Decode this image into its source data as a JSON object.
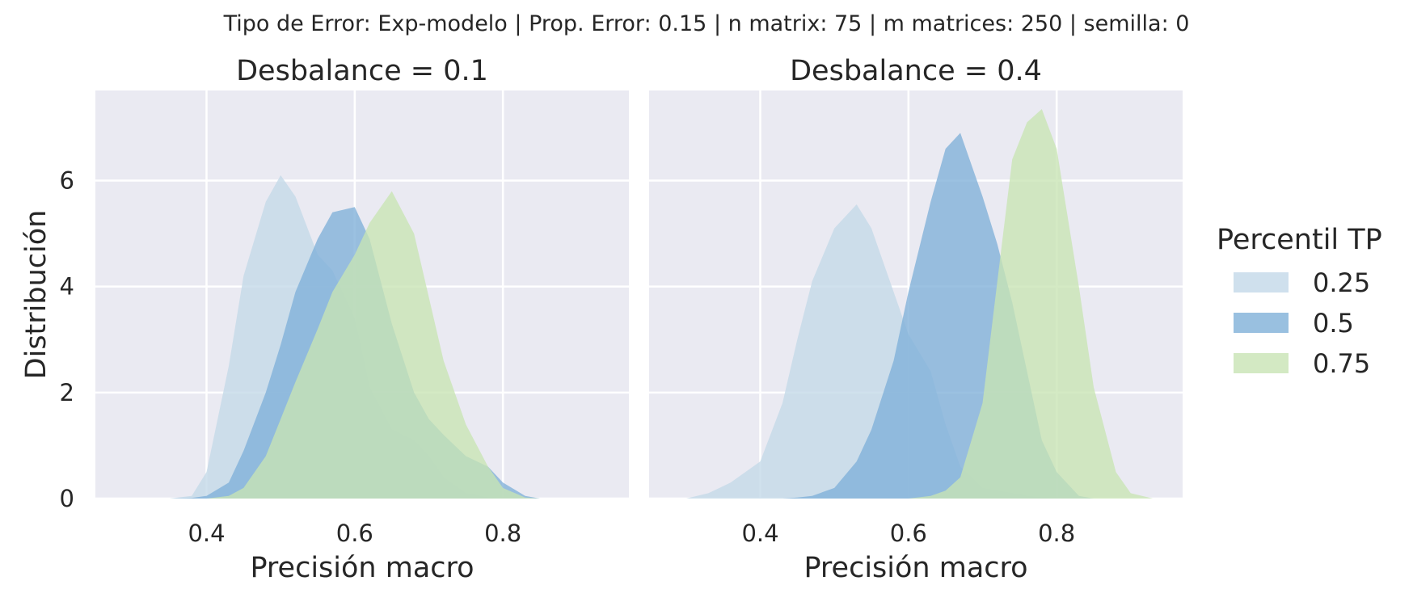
{
  "suptitle": "Tipo de Error: Exp-modelo | Prop. Error: 0.15 | n matrix: 75 | m matrices: 250 | semilla: 0",
  "legend": {
    "title": "Percentil TP",
    "placement": "right",
    "entries": [
      {
        "label": "0.25",
        "color": "#c3d8e8"
      },
      {
        "label": "0.5",
        "color": "#7fb0d8"
      },
      {
        "label": "0.75",
        "color": "#c8e4b4"
      }
    ]
  },
  "chart_data": [
    {
      "type": "area",
      "title": "Desbalance = 0.1",
      "xlabel": "Precisión macro",
      "ylabel": "Distribución",
      "xlim": [
        0.25,
        0.97
      ],
      "ylim": [
        0,
        7.7
      ],
      "xticks": [
        "0.4",
        "0.6",
        "0.8"
      ],
      "yticks": [
        "0",
        "2",
        "4",
        "6"
      ],
      "grid": true,
      "x": [
        0.3,
        0.35,
        0.38,
        0.4,
        0.43,
        0.45,
        0.48,
        0.5,
        0.52,
        0.55,
        0.57,
        0.6,
        0.62,
        0.65,
        0.68,
        0.7,
        0.72,
        0.75,
        0.78,
        0.8,
        0.83,
        0.85,
        0.9
      ],
      "series": [
        {
          "name": "0.25",
          "color": "#c3d8e8",
          "values": [
            0,
            0.0,
            0.05,
            0.5,
            2.5,
            4.2,
            5.6,
            6.1,
            5.7,
            4.6,
            4.3,
            3.4,
            2.1,
            1.3,
            1.1,
            0.8,
            0.4,
            0.1,
            0.02,
            0.0,
            0,
            0,
            0
          ]
        },
        {
          "name": "0.5",
          "color": "#7fb0d8",
          "values": [
            0,
            0.0,
            0.01,
            0.05,
            0.3,
            0.9,
            2.0,
            2.9,
            3.9,
            4.9,
            5.4,
            5.5,
            4.9,
            3.3,
            2.0,
            1.5,
            1.2,
            0.8,
            0.6,
            0.3,
            0.05,
            0.0,
            0
          ]
        },
        {
          "name": "0.75",
          "color": "#c8e4b4",
          "values": [
            0,
            0,
            0,
            0.0,
            0.05,
            0.2,
            0.8,
            1.5,
            2.2,
            3.2,
            3.9,
            4.6,
            5.2,
            5.8,
            5.0,
            3.8,
            2.6,
            1.4,
            0.6,
            0.2,
            0.02,
            0.0,
            0
          ]
        }
      ]
    },
    {
      "type": "area",
      "title": "Desbalance = 0.4",
      "xlabel": "Precisión macro",
      "ylabel": "",
      "xlim": [
        0.25,
        0.97
      ],
      "ylim": [
        0,
        7.7
      ],
      "xticks": [
        "0.4",
        "0.6",
        "0.8"
      ],
      "yticks": [
        "0",
        "2",
        "4",
        "6"
      ],
      "grid": true,
      "x": [
        0.3,
        0.33,
        0.36,
        0.4,
        0.43,
        0.45,
        0.47,
        0.5,
        0.53,
        0.55,
        0.58,
        0.6,
        0.63,
        0.65,
        0.67,
        0.7,
        0.72,
        0.74,
        0.76,
        0.78,
        0.8,
        0.83,
        0.85,
        0.88,
        0.9,
        0.93
      ],
      "series": [
        {
          "name": "0.25",
          "color": "#c3d8e8",
          "values": [
            0.0,
            0.1,
            0.3,
            0.7,
            1.8,
            3.0,
            4.1,
            5.1,
            5.55,
            5.1,
            3.9,
            3.1,
            2.4,
            1.4,
            0.6,
            0.2,
            0.15,
            0.1,
            0.05,
            0.02,
            0.0,
            0,
            0,
            0,
            0,
            0
          ]
        },
        {
          "name": "0.5",
          "color": "#7fb0d8",
          "values": [
            0,
            0,
            0,
            0,
            0.0,
            0.02,
            0.05,
            0.2,
            0.7,
            1.3,
            2.6,
            3.9,
            5.6,
            6.6,
            6.9,
            5.7,
            4.8,
            3.7,
            2.4,
            1.1,
            0.5,
            0.05,
            0.0,
            0,
            0,
            0
          ]
        },
        {
          "name": "0.75",
          "color": "#c8e4b4",
          "values": [
            0,
            0,
            0,
            0,
            0,
            0,
            0,
            0,
            0,
            0,
            0,
            0.0,
            0.05,
            0.15,
            0.4,
            1.8,
            4.1,
            6.4,
            7.1,
            7.35,
            6.6,
            4.0,
            2.1,
            0.5,
            0.1,
            0.0
          ]
        }
      ]
    }
  ]
}
